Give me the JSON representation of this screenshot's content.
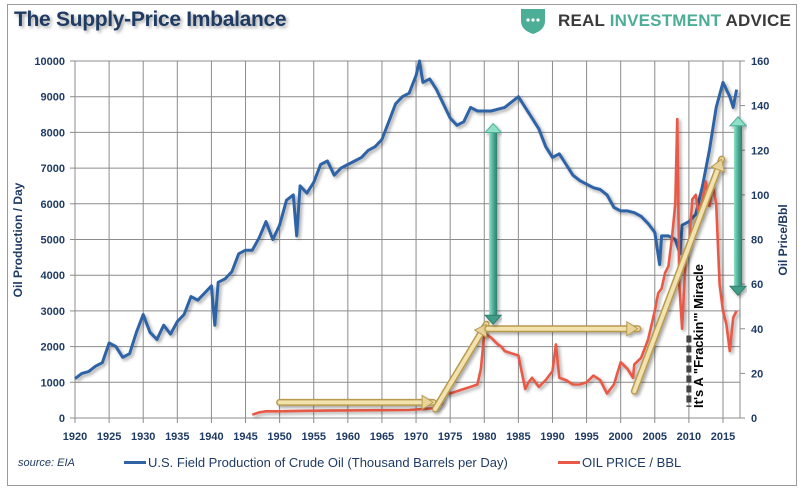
{
  "header": {
    "title": "The Supply-Price Imbalance",
    "brand_part1": "REAL ",
    "brand_part2": "INVESTMENT",
    "brand_part3": " ADVICE",
    "brand_icon": "shield-dots-icon"
  },
  "footer": {
    "source": "source: EIA"
  },
  "colors": {
    "production": "#2f63a5",
    "price": "#e85a47",
    "axis_text": "#1f3b63",
    "grid": "#8c8c8c",
    "gold_arrow": "#e8d49a",
    "teal_arrow": "#4cae97",
    "brand_teal": "#4cae97"
  },
  "chart_data": {
    "type": "line",
    "title": "The Supply-Price Imbalance",
    "xlabel": "",
    "ylabel": "Oil Production / Day",
    "y2label": "Oil Price/Bbl",
    "xlim": [
      1920,
      2017.5
    ],
    "ylim": [
      0,
      10000
    ],
    "y2lim": [
      0,
      160
    ],
    "grid": true,
    "legend_position": "bottom",
    "x_ticks": [
      "1920",
      "1925",
      "1930",
      "1935",
      "1940",
      "1945",
      "1950",
      "1955",
      "1960",
      "1965",
      "1970",
      "1975",
      "1980",
      "1985",
      "1990",
      "1995",
      "2000",
      "2005",
      "2010",
      "2015"
    ],
    "y_ticks": [
      "0",
      "1000",
      "2000",
      "3000",
      "4000",
      "5000",
      "6000",
      "7000",
      "8000",
      "9000",
      "10000"
    ],
    "y2_ticks": [
      "0",
      "20",
      "40",
      "60",
      "80",
      "100",
      "120",
      "140",
      "160"
    ],
    "series": [
      {
        "name": "U.S. Field Production of Crude Oil (Thousand Barrels per Day)",
        "axis": "left",
        "x": [
          1920,
          1921,
          1922,
          1923,
          1924,
          1925,
          1926,
          1927,
          1928,
          1929,
          1930,
          1931,
          1932,
          1933,
          1934,
          1935,
          1936,
          1937,
          1938,
          1939,
          1940,
          1940.5,
          1941,
          1942,
          1943,
          1944,
          1945,
          1946,
          1947,
          1948,
          1949,
          1950,
          1951,
          1952,
          1952.5,
          1953,
          1954,
          1955,
          1956,
          1957,
          1958,
          1959,
          1960,
          1961,
          1962,
          1963,
          1964,
          1965,
          1966,
          1967,
          1968,
          1969,
          1970,
          1970.5,
          1971,
          1972,
          1973,
          1974,
          1975,
          1976,
          1977,
          1978,
          1979,
          1980,
          1981,
          1982,
          1983,
          1984,
          1985,
          1986,
          1987,
          1988,
          1989,
          1990,
          1991,
          1992,
          1993,
          1994,
          1995,
          1996,
          1997,
          1998,
          1999,
          2000,
          2001,
          2002,
          2003,
          2004,
          2005,
          2005.7,
          2006,
          2007,
          2008,
          2008.7,
          2009,
          2010,
          2011,
          2012,
          2013,
          2014,
          2015,
          2016,
          2016.5,
          2017
        ],
        "values": [
          1100,
          1250,
          1300,
          1450,
          1550,
          2100,
          2000,
          1700,
          1800,
          2400,
          2900,
          2400,
          2200,
          2600,
          2350,
          2700,
          2900,
          3400,
          3300,
          3500,
          3700,
          2600,
          3800,
          3900,
          4100,
          4600,
          4700,
          4700,
          5050,
          5500,
          5000,
          5400,
          6100,
          6250,
          5100,
          6500,
          6300,
          6600,
          7100,
          7200,
          6800,
          7000,
          7100,
          7200,
          7300,
          7500,
          7600,
          7800,
          8300,
          8800,
          9000,
          9100,
          9600,
          10000,
          9400,
          9500,
          9200,
          8800,
          8400,
          8200,
          8300,
          8700,
          8600,
          8600,
          8600,
          8650,
          8700,
          8850,
          9000,
          8700,
          8400,
          8100,
          7600,
          7300,
          7400,
          7100,
          6800,
          6650,
          6550,
          6450,
          6400,
          6250,
          5900,
          5800,
          5800,
          5750,
          5650,
          5450,
          5200,
          4300,
          5100,
          5100,
          5000,
          4600,
          5400,
          5500,
          5700,
          6500,
          7500,
          8700,
          9400,
          9000,
          8700,
          9200
        ]
      },
      {
        "name": "OIL PRICE / BBL",
        "axis": "right",
        "x": [
          1946,
          1947,
          1948,
          1950,
          1953,
          1957,
          1960,
          1965,
          1969,
          1971,
          1973,
          1973.8,
          1974,
          1975,
          1977,
          1978,
          1979,
          1979.5,
          1980,
          1980.5,
          1981,
          1982,
          1982.5,
          1983,
          1984,
          1985,
          1986,
          1986.5,
          1987,
          1988,
          1989,
          1990,
          1990.5,
          1991,
          1992,
          1993,
          1994,
          1995,
          1996,
          1997,
          1998,
          1999,
          2000,
          2001,
          2001.8,
          2002,
          2003,
          2004,
          2005,
          2005.5,
          2006,
          2006.5,
          2007,
          2007.5,
          2008,
          2008.3,
          2008.6,
          2009,
          2009.5,
          2010,
          2010.5,
          2011,
          2011.5,
          2012,
          2012.5,
          2013,
          2013.5,
          2014,
          2014.5,
          2015,
          2015.5,
          2016,
          2016.5,
          2017
        ],
        "values": [
          1.5,
          2.5,
          3.0,
          3.0,
          3.2,
          3.3,
          3.4,
          3.5,
          3.6,
          4.0,
          4.5,
          6.5,
          12,
          11,
          13,
          14,
          15,
          22,
          38,
          37,
          36,
          33,
          32,
          30,
          29,
          28,
          13,
          16,
          18,
          14,
          17,
          21,
          33,
          18,
          17,
          15,
          15,
          16,
          19,
          17,
          11,
          15,
          25,
          22,
          18,
          24,
          27,
          35,
          48,
          56,
          58,
          65,
          68,
          80,
          96,
          134,
          60,
          40,
          70,
          76,
          98,
          100,
          90,
          98,
          106,
          95,
          104,
          96,
          60,
          48,
          42,
          30,
          45,
          48
        ]
      }
    ],
    "annotations": [
      {
        "type": "text",
        "text": "It's A \"Frackin'\" Miracle",
        "x": 2011.5,
        "orientation": "vertical"
      },
      {
        "type": "dashed-line",
        "x": 2010,
        "from_price": 5,
        "to_price": 37
      },
      {
        "type": "arrow",
        "color": "gold",
        "from": [
          1950,
          7
        ],
        "to": [
          1972.5,
          7
        ]
      },
      {
        "type": "arrow",
        "color": "gold",
        "from": [
          1972.8,
          4
        ],
        "to": [
          1980.3,
          42
        ]
      },
      {
        "type": "arrow",
        "color": "gold",
        "from": [
          1980.5,
          40
        ],
        "to": [
          2002.5,
          40
        ]
      },
      {
        "type": "arrow",
        "color": "gold",
        "from": [
          2002,
          12
        ],
        "to": [
          2014.8,
          116
        ]
      },
      {
        "type": "double-arrow",
        "color": "teal",
        "x": 1981.3,
        "from_price": 42,
        "to_price": 132
      },
      {
        "type": "double-arrow",
        "color": "teal",
        "x": 2017.2,
        "from_price": 55,
        "to_price": 135
      }
    ]
  },
  "legend": {
    "items": [
      {
        "label": "U.S. Field Production of Crude Oil (Thousand Barrels per Day)",
        "color": "#2f63a5"
      },
      {
        "label": "OIL PRICE / BBL",
        "color": "#e85a47"
      }
    ]
  }
}
